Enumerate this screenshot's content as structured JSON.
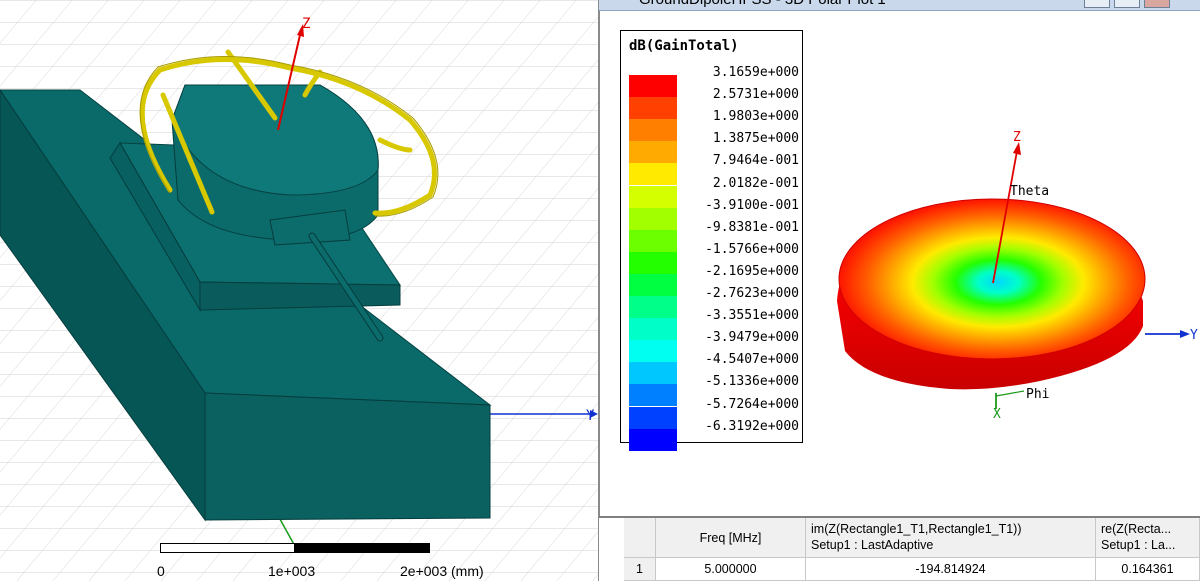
{
  "left_view": {
    "axis_z": "Z",
    "axis_y": "Y",
    "scale": {
      "tick0": "0",
      "tick1": "1e+003",
      "tick2": "2e+003 (mm)"
    }
  },
  "right_window": {
    "title": "GroundDipoleHFSS - 3D Polar Plot 1",
    "legend": {
      "title": "dB(GainTotal)",
      "entries": [
        {
          "label": "3.1659e+000",
          "color": "#ff0000"
        },
        {
          "label": "2.5731e+000",
          "color": "#ff4000"
        },
        {
          "label": "1.9803e+000",
          "color": "#ff8000"
        },
        {
          "label": "1.3875e+000",
          "color": "#ffaa00"
        },
        {
          "label": "7.9464e-001",
          "color": "#ffea00"
        },
        {
          "label": "2.0182e-001",
          "color": "#d4ff00"
        },
        {
          "label": "-3.9100e-001",
          "color": "#a2ff00"
        },
        {
          "label": "-9.8381e-001",
          "color": "#6cff00"
        },
        {
          "label": "-1.5766e+000",
          "color": "#24ff00"
        },
        {
          "label": "-2.1695e+000",
          "color": "#00ff40"
        },
        {
          "label": "-2.7623e+000",
          "color": "#00ff88"
        },
        {
          "label": "-3.3551e+000",
          "color": "#00ffc8"
        },
        {
          "label": "-3.9479e+000",
          "color": "#00fff0"
        },
        {
          "label": "-4.5407e+000",
          "color": "#00c8ff"
        },
        {
          "label": "-5.1336e+000",
          "color": "#0080ff"
        },
        {
          "label": "-5.7264e+000",
          "color": "#0040ff"
        },
        {
          "label": "-6.3192e+000",
          "color": "#0000ff"
        }
      ]
    },
    "axes": {
      "z": "Z",
      "theta": "Theta",
      "y": "Y",
      "phi": "Phi",
      "x": "X"
    },
    "table": {
      "headers": {
        "freq": "Freq [MHz]",
        "im_line1": "im(Z(Rectangle1_T1,Rectangle1_T1))",
        "im_line2": "Setup1 : LastAdaptive",
        "re_line1": "re(Z(Recta...",
        "re_line2": "Setup1 : La..."
      },
      "rows": [
        {
          "index": "1",
          "freq": "5.000000",
          "im": "-194.814924",
          "re": "0.164361"
        }
      ]
    }
  }
}
